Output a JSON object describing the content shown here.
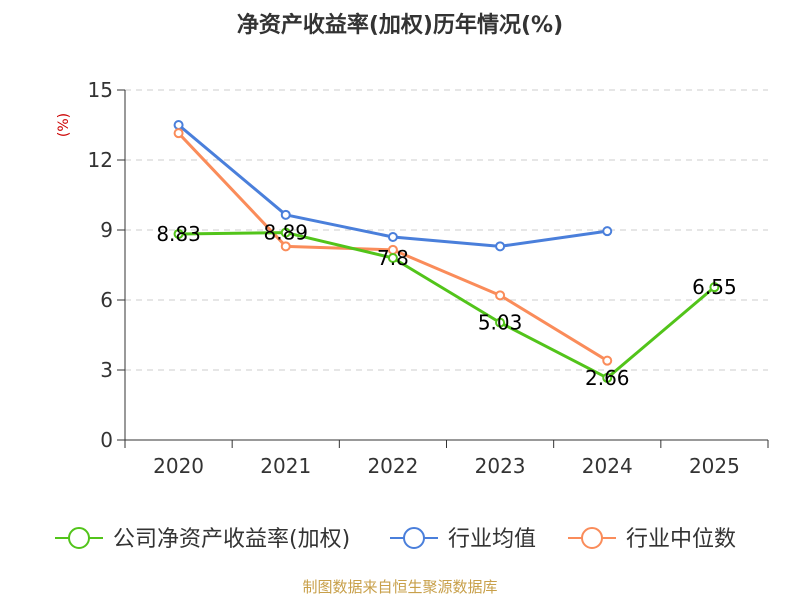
{
  "chart_data": {
    "type": "line",
    "title": "净资产收益率(加权)历年情况(%)",
    "unit_label": "(%)",
    "categories": [
      "2020",
      "2021",
      "2022",
      "2023",
      "2024",
      "2025"
    ],
    "ylim": [
      0,
      15
    ],
    "yticks": [
      0,
      3,
      6,
      9,
      12,
      15
    ],
    "grid": true,
    "legend_position": "bottom",
    "series": [
      {
        "name": "公司净资产收益率(加权)",
        "color": "#52c41a",
        "values": [
          8.83,
          8.89,
          7.8,
          5.03,
          2.66,
          6.55
        ],
        "labels": [
          "8.83",
          "8.89",
          "7.8",
          "5.03",
          "2.66",
          "6.55"
        ]
      },
      {
        "name": "行业均值",
        "color": "#4a7fdb",
        "values": [
          13.5,
          9.65,
          8.7,
          8.3,
          8.95,
          null
        ]
      },
      {
        "name": "行业中位数",
        "color": "#fa8c5a",
        "values": [
          13.15,
          8.3,
          8.15,
          6.2,
          3.4,
          null
        ]
      }
    ]
  },
  "colors": {
    "title": "#333333",
    "unit": "#cc0000",
    "grid": "#cccccc",
    "axis": "#333333",
    "source": "#c8a04a"
  },
  "source": "制图数据来自恒生聚源数据库"
}
